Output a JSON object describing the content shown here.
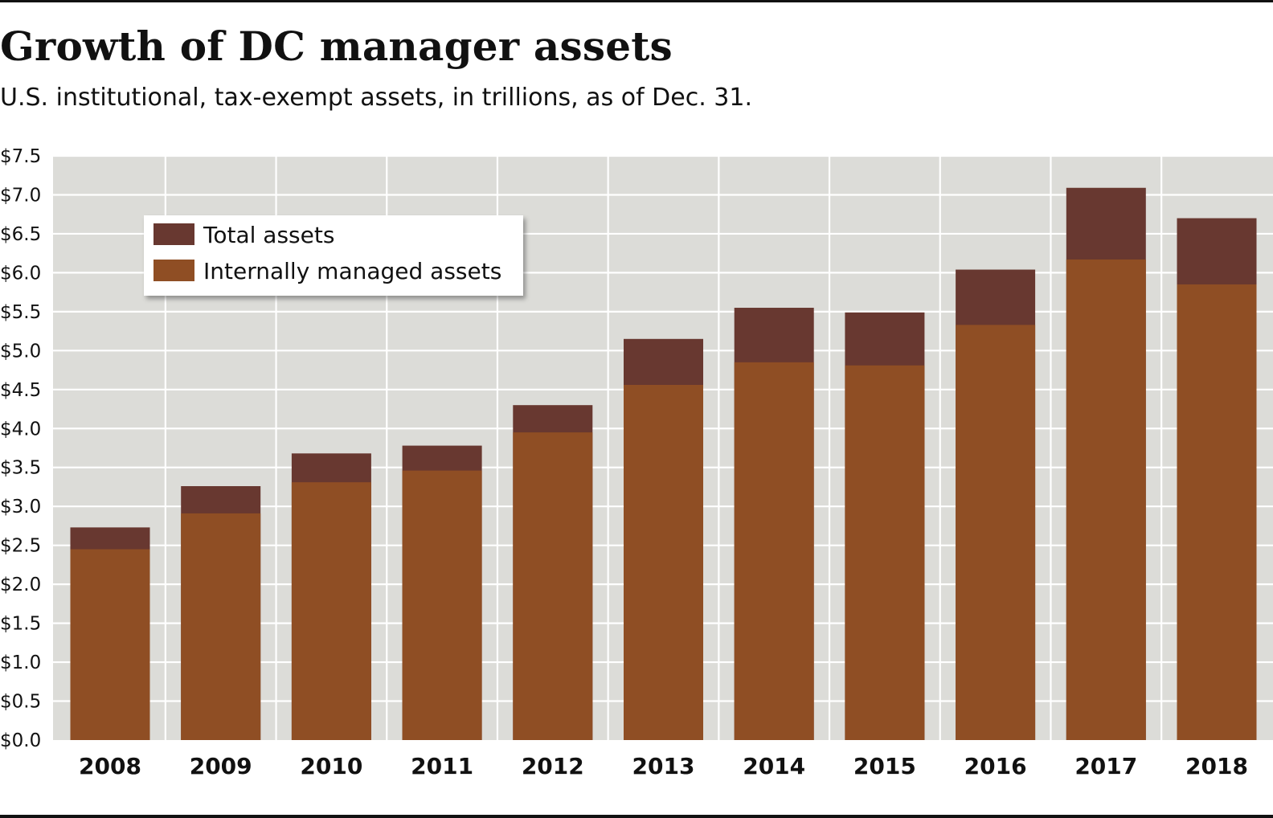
{
  "chart_data": {
    "type": "bar",
    "title": "Growth of DC manager assets",
    "subtitle": "U.S. institutional, tax-exempt assets, in trillions, as of Dec. 31.",
    "xlabel": "",
    "ylabel": "",
    "categories": [
      "2008",
      "2009",
      "2010",
      "2011",
      "2012",
      "2013",
      "2014",
      "2015",
      "2016",
      "2017",
      "2018"
    ],
    "series": [
      {
        "name": "Internally managed assets",
        "color": "#8f4e24",
        "values": [
          2.45,
          2.91,
          3.31,
          3.46,
          3.95,
          4.56,
          4.85,
          4.81,
          5.33,
          6.17,
          5.85
        ]
      },
      {
        "name": "Total assets",
        "color": "#683830",
        "values": [
          2.73,
          3.26,
          3.68,
          3.78,
          4.3,
          5.15,
          5.55,
          5.49,
          6.04,
          7.09,
          6.7
        ]
      }
    ],
    "ylim": [
      0,
      7.5
    ],
    "yticks": [
      0,
      0.5,
      1.0,
      1.5,
      2.0,
      2.5,
      3.0,
      3.5,
      4.0,
      4.5,
      5.0,
      5.5,
      6.0,
      6.5,
      7.0,
      7.5
    ],
    "ytick_labels": [
      "$0.0",
      "$0.5",
      "$1.0",
      "$1.5",
      "$2.0",
      "$2.5",
      "$3.0",
      "$3.5",
      "$4.0",
      "$4.5",
      "$5.0",
      "$5.5",
      "$6.0",
      "$6.5",
      "$7.0",
      "$7.5"
    ],
    "legend": {
      "placement": "top-left",
      "items": [
        "Total assets",
        "Internally managed assets"
      ]
    },
    "grid": true,
    "background_color": "#dcdcd8",
    "grid_color": "#ffffff"
  }
}
